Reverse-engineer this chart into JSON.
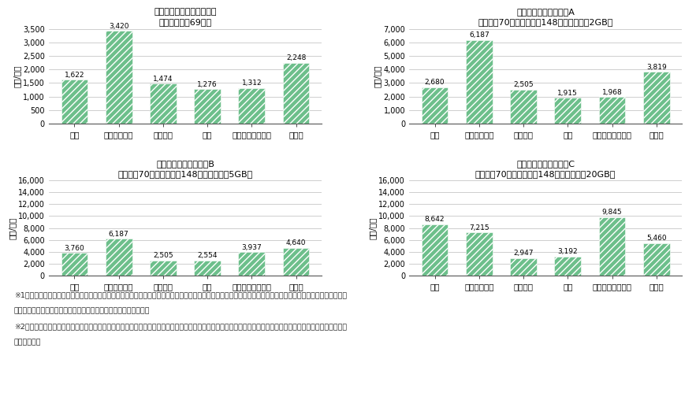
{
  "charts": [
    {
      "title": "フィーチャーフォンユーザ",
      "subtitle": "（音声のみ月69分）",
      "values": [
        1622,
        3420,
        1474,
        1276,
        1312,
        2248
      ],
      "ylim": [
        0,
        3500
      ],
      "yticks": [
        0,
        500,
        1000,
        1500,
        2000,
        2500,
        3000,
        3500
      ]
    },
    {
      "title": "スマートフォンユーザA",
      "subtitle": "（音声月70分・メール月148通・データ月2GB）",
      "values": [
        2680,
        6187,
        2505,
        1915,
        1968,
        3819
      ],
      "ylim": [
        0,
        7000
      ],
      "yticks": [
        0,
        1000,
        2000,
        3000,
        4000,
        5000,
        6000,
        7000
      ]
    },
    {
      "title": "スマートフォンユーザB",
      "subtitle": "（音声月70分・メール月148通・データ月5GB）",
      "values": [
        3760,
        6187,
        2505,
        2554,
        3937,
        4640
      ],
      "ylim": [
        0,
        16000
      ],
      "yticks": [
        0,
        2000,
        4000,
        6000,
        8000,
        10000,
        12000,
        14000,
        16000
      ]
    },
    {
      "title": "スマートフォンユーザC",
      "subtitle": "（音声月70分・メール月148通・データ月20GB）",
      "values": [
        8642,
        7215,
        2947,
        3192,
        9845,
        5460
      ],
      "ylim": [
        0,
        16000
      ],
      "yticks": [
        0,
        2000,
        4000,
        6000,
        8000,
        10000,
        12000,
        14000,
        16000
      ]
    }
  ],
  "categories": [
    "東京",
    "ニューヨーク",
    "ロンドン",
    "パリ",
    "デュッセルドルフ",
    "ソウル"
  ],
  "bar_color": "#6dbf8b",
  "ylabel": "（円/月）",
  "footnote1": "※1　フィーチャーフォンについては、音声のみの料金プランで月々の支払額を比較。スマートフォンについては、我が国の携帯電話による通話、メール、データ",
  "footnote1b": "　　通信の利用実態からモデル料金を算定し月々の支払額を比較。",
  "footnote2": "※2　電気通信サービスに係る料金については、各国とも通常料金・割引料金の別を始め、様々な体系が存在し、利用形態により要する料金が異なること等に留意",
  "footnote2b": "　　が必要。",
  "background_color": "#ffffff"
}
